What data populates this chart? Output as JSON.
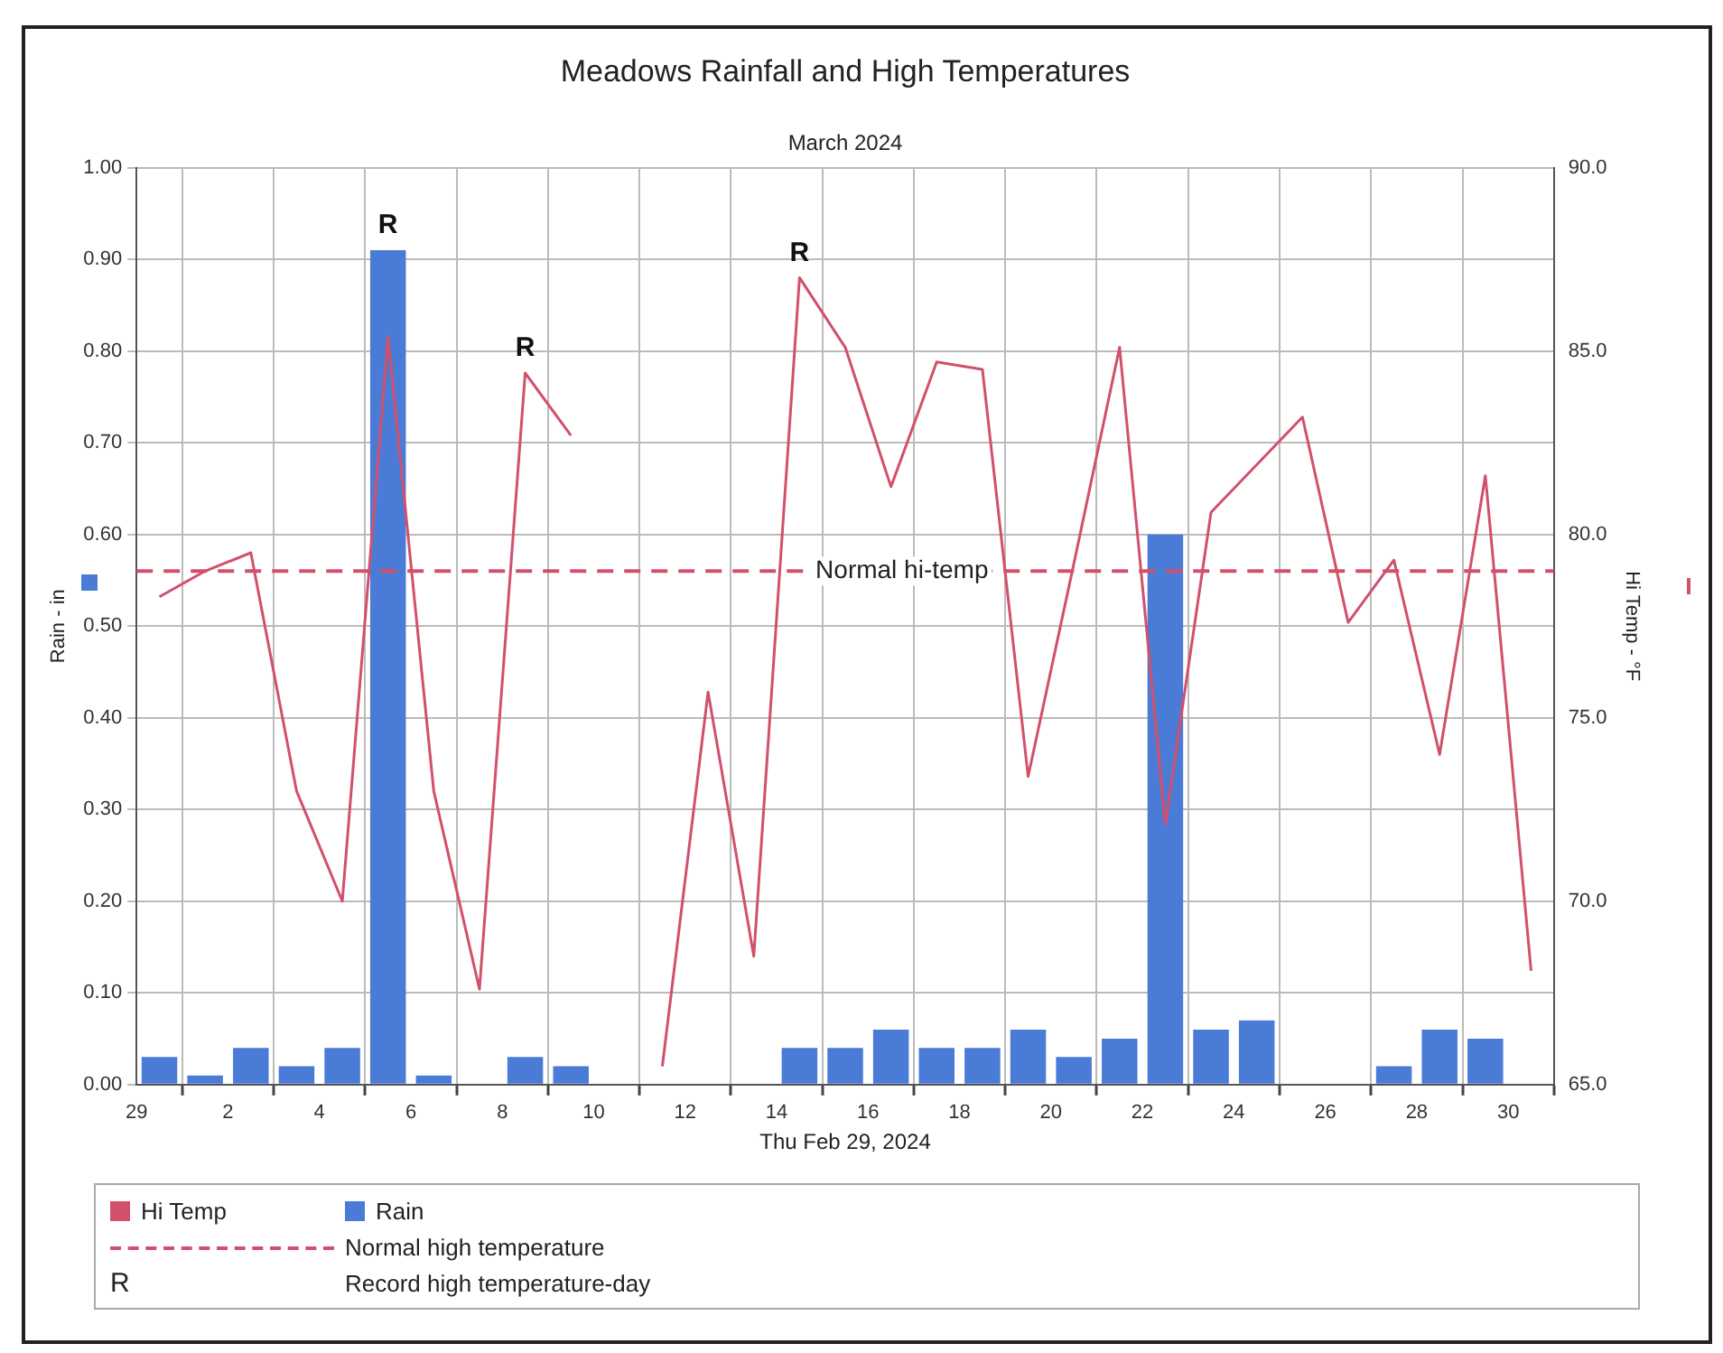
{
  "chart_data": {
    "type": "bar",
    "title": "Meadows Rainfall and High Temperatures",
    "subtitle": "March 2024",
    "xlabel": "Thu Feb 29, 2024",
    "ylabel": "Rain - in",
    "y2label": "Hi Temp - °F",
    "x": [
      "2024-02-29T12:00",
      "2024-03-01T12:00",
      "2024-03-02T12:00",
      "2024-03-03T12:00",
      "2024-03-04T12:00",
      "2024-03-05T12:00",
      "2024-03-06T12:00",
      "2024-03-07T12:00",
      "2024-03-08T12:00",
      "2024-03-09T12:00",
      "2024-03-10T12:00",
      "2024-03-11T12:00",
      "2024-03-12T12:00",
      "2024-03-13T12:00",
      "2024-03-14T12:00",
      "2024-03-15T12:00",
      "2024-03-16T12:00",
      "2024-03-17T12:00",
      "2024-03-18T12:00",
      "2024-03-19T12:00",
      "2024-03-20T12:00",
      "2024-03-21T12:00",
      "2024-03-22T12:00",
      "2024-03-23T12:00",
      "2024-03-24T12:00",
      "2024-03-25T12:00",
      "2024-03-26T12:00",
      "2024-03-27T12:00",
      "2024-03-28T12:00",
      "2024-03-29T12:00",
      "2024-03-30T12:00"
    ],
    "series": [
      {
        "name": "Hi Temp",
        "type": "line",
        "axis": "y2",
        "color": "#d2506a",
        "values": [
          78.3,
          79.0,
          79.5,
          73.0,
          70.0,
          85.4,
          73.0,
          67.6,
          84.4,
          82.7,
          null,
          65.5,
          75.7,
          68.5,
          87.0,
          85.1,
          81.3,
          84.7,
          84.5,
          73.4,
          79.2,
          85.1,
          72.1,
          80.6,
          81.9,
          83.2,
          77.6,
          79.3,
          74.0,
          81.6,
          68.1
        ]
      },
      {
        "name": "Rain",
        "color": "#4a7bd6",
        "values": [
          0.03,
          0.01,
          0.04,
          0.02,
          0.04,
          0.91,
          0.01,
          null,
          0.03,
          0.02,
          null,
          null,
          null,
          null,
          0.04,
          0.04,
          0.06,
          0.04,
          0.04,
          0.06,
          0.03,
          0.05,
          0.6,
          0.06,
          0.07,
          null,
          null,
          0.02,
          0.06,
          0.05,
          null
        ]
      }
    ],
    "xlim": [
      "2024-02-29",
      "2024-03-31"
    ],
    "xticks": [
      {
        "value": "2024-02-29",
        "label": "29"
      },
      {
        "value": "2024-03-02",
        "label": "2"
      },
      {
        "value": "2024-03-04",
        "label": "4"
      },
      {
        "value": "2024-03-06",
        "label": "6"
      },
      {
        "value": "2024-03-08",
        "label": "8"
      },
      {
        "value": "2024-03-10",
        "label": "10"
      },
      {
        "value": "2024-03-12",
        "label": "12"
      },
      {
        "value": "2024-03-14",
        "label": "14"
      },
      {
        "value": "2024-03-16",
        "label": "16"
      },
      {
        "value": "2024-03-18",
        "label": "18"
      },
      {
        "value": "2024-03-20",
        "label": "20"
      },
      {
        "value": "2024-03-22",
        "label": "22"
      },
      {
        "value": "2024-03-24",
        "label": "24"
      },
      {
        "value": "2024-03-26",
        "label": "26"
      },
      {
        "value": "2024-03-28",
        "label": "28"
      },
      {
        "value": "2024-03-30",
        "label": "30"
      }
    ],
    "ylim": [
      0,
      1
    ],
    "yticks": [
      {
        "value": 0,
        "label": "0.00"
      },
      {
        "value": 0.1,
        "label": "0.10"
      },
      {
        "value": 0.2,
        "label": "0.20"
      },
      {
        "value": 0.3,
        "label": "0.30"
      },
      {
        "value": 0.4,
        "label": "0.40"
      },
      {
        "value": 0.5,
        "label": "0.50"
      },
      {
        "value": 0.6,
        "label": "0.60"
      },
      {
        "value": 0.7,
        "label": "0.70"
      },
      {
        "value": 0.8,
        "label": "0.80"
      },
      {
        "value": 0.9,
        "label": "0.90"
      },
      {
        "value": 1,
        "label": "1.00"
      }
    ],
    "y2lim": [
      65,
      90
    ],
    "y2ticks": [
      {
        "value": 65,
        "label": "65.0"
      },
      {
        "value": 70,
        "label": "70.0"
      },
      {
        "value": 75,
        "label": "75.0"
      },
      {
        "value": 80,
        "label": "80.0"
      },
      {
        "value": 85,
        "label": "85.0"
      },
      {
        "value": 90,
        "label": "90.0"
      }
    ],
    "ref_lines": [
      {
        "axis": "y2",
        "value": 79.0,
        "label": "Normal hi-temp",
        "color": "#d2506a",
        "line_style": "dashed"
      }
    ],
    "annotations": [
      {
        "text": "R",
        "x": "2024-03-05T12:00",
        "y": 0.91
      },
      {
        "text": "R",
        "x": "2024-03-08T12:00",
        "y": 0.776
      },
      {
        "text": "R",
        "x": "2024-03-14T12:00",
        "y": 0.88
      },
      "Normal high temperature",
      "R",
      "Record high temperature-day"
    ],
    "grid": true,
    "legend": "bottom"
  }
}
